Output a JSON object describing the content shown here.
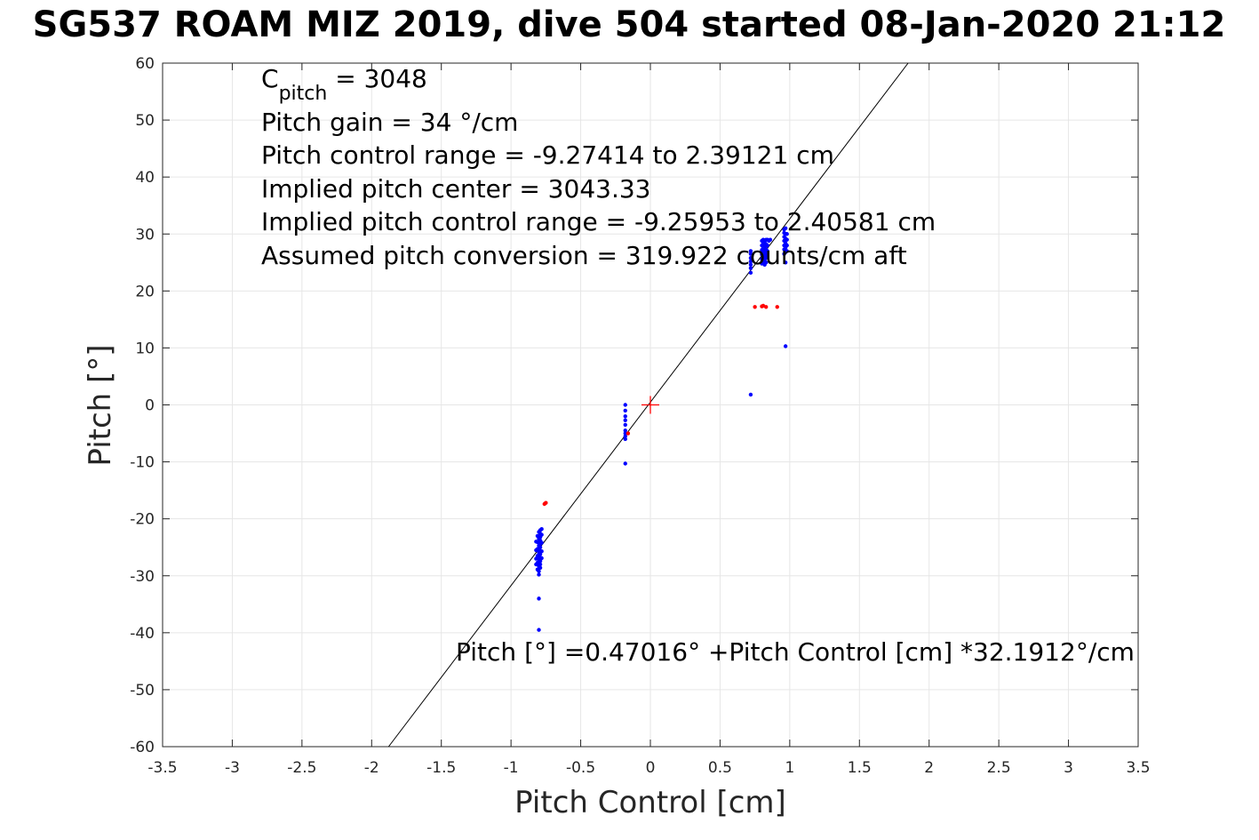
{
  "chart_data": {
    "type": "scatter",
    "title": "SG537 ROAM MIZ 2019, dive 504 started 08-Jan-2020 21:12",
    "xlabel": "Pitch Control [cm]",
    "ylabel": "Pitch [°]",
    "xlim": [
      -3.5,
      3.5
    ],
    "ylim": [
      -60,
      60
    ],
    "xticks": [
      -3.5,
      -3,
      -2.5,
      -2,
      -1.5,
      -1,
      -0.5,
      0,
      0.5,
      1,
      1.5,
      2,
      2.5,
      3,
      3.5
    ],
    "yticks": [
      -60,
      -50,
      -40,
      -30,
      -20,
      -10,
      0,
      10,
      20,
      30,
      40,
      50,
      60
    ],
    "xtick_labels": [
      "-3.5",
      "-3",
      "-2.5",
      "-2",
      "-1.5",
      "-1",
      "-0.5",
      "0",
      "0.5",
      "1",
      "1.5",
      "2",
      "2.5",
      "3",
      "3.5"
    ],
    "ytick_labels": [
      "-60",
      "-50",
      "-40",
      "-30",
      "-20",
      "-10",
      "0",
      "10",
      "20",
      "30",
      "40",
      "50",
      "60"
    ],
    "grid": true,
    "annotations": {
      "c_pitch_main": "C",
      "c_pitch_sub": "pitch",
      "c_pitch_rest": " = 3048",
      "pitch_gain": "Pitch gain = 34 °/cm",
      "control_range": "Pitch control range = -9.27414 to 2.39121 cm",
      "implied_center": "Implied pitch center = 3043.33",
      "implied_range": "Implied pitch control range = -9.25953 to 2.40581 cm",
      "assumed_conversion": "Assumed pitch conversion = 319.922 counts/cm aft",
      "fit_equation": "Pitch [°] =0.47016° +Pitch Control [cm] *32.1912°/cm"
    },
    "fit_line": {
      "intercept": 0.47016,
      "slope": 32.1912,
      "color": "#000000"
    },
    "center_marker": {
      "x": 0,
      "y": 0,
      "color": "#ff0000"
    },
    "series": [
      {
        "color": "#0000ff",
        "points": [
          [
            -0.79,
            -22.0
          ],
          [
            -0.79,
            -22.6
          ],
          [
            -0.79,
            -23.2
          ],
          [
            -0.79,
            -23.8
          ],
          [
            -0.79,
            -24.4
          ],
          [
            -0.79,
            -25.0
          ],
          [
            -0.79,
            -25.6
          ],
          [
            -0.79,
            -26.2
          ],
          [
            -0.79,
            -26.8
          ],
          [
            -0.79,
            -27.4
          ],
          [
            -0.79,
            -28.0
          ],
          [
            -0.79,
            -28.6
          ],
          [
            -0.8,
            -22.3
          ],
          [
            -0.8,
            -23.5
          ],
          [
            -0.8,
            -24.7
          ],
          [
            -0.8,
            -25.9
          ],
          [
            -0.8,
            -27.1
          ],
          [
            -0.8,
            -28.3
          ],
          [
            -0.8,
            -29.2
          ],
          [
            -0.8,
            -29.8
          ],
          [
            -0.81,
            -23.0
          ],
          [
            -0.81,
            -24.1
          ],
          [
            -0.81,
            -25.3
          ],
          [
            -0.81,
            -26.5
          ],
          [
            -0.81,
            -27.7
          ],
          [
            -0.81,
            -28.9
          ],
          [
            -0.82,
            -24.0
          ],
          [
            -0.82,
            -25.5
          ],
          [
            -0.82,
            -27.0
          ],
          [
            -0.82,
            -28.0
          ],
          [
            -0.78,
            -22.8
          ],
          [
            -0.78,
            -24.2
          ],
          [
            -0.78,
            -25.7
          ],
          [
            -0.78,
            -26.9
          ],
          [
            -0.78,
            -21.8
          ],
          [
            -0.8,
            -34.0
          ],
          [
            -0.8,
            -39.5
          ],
          [
            -0.18,
            0.0
          ],
          [
            -0.18,
            -1.0
          ],
          [
            -0.18,
            -2.0
          ],
          [
            -0.18,
            -2.7
          ],
          [
            -0.18,
            -3.5
          ],
          [
            -0.18,
            -4.5
          ],
          [
            -0.18,
            -5.0
          ],
          [
            -0.18,
            -5.5
          ],
          [
            -0.18,
            -6.0
          ],
          [
            -0.18,
            -10.3
          ],
          [
            0.72,
            23.2
          ],
          [
            0.72,
            24.0
          ],
          [
            0.72,
            24.6
          ],
          [
            0.72,
            25.2
          ],
          [
            0.72,
            25.8
          ],
          [
            0.72,
            26.5
          ],
          [
            0.72,
            27.0
          ],
          [
            0.72,
            1.8
          ],
          [
            0.8,
            24.8
          ],
          [
            0.8,
            25.6
          ],
          [
            0.8,
            26.4
          ],
          [
            0.8,
            27.2
          ],
          [
            0.8,
            28.0
          ],
          [
            0.8,
            28.8
          ],
          [
            0.81,
            25.2
          ],
          [
            0.81,
            26.0
          ],
          [
            0.81,
            26.8
          ],
          [
            0.81,
            27.6
          ],
          [
            0.81,
            28.4
          ],
          [
            0.81,
            29.0
          ],
          [
            0.82,
            24.6
          ],
          [
            0.82,
            25.4
          ],
          [
            0.82,
            26.2
          ],
          [
            0.82,
            27.0
          ],
          [
            0.82,
            27.8
          ],
          [
            0.82,
            28.6
          ],
          [
            0.83,
            25.0
          ],
          [
            0.83,
            25.8
          ],
          [
            0.83,
            26.6
          ],
          [
            0.83,
            27.4
          ],
          [
            0.83,
            28.2
          ],
          [
            0.83,
            29.0
          ],
          [
            0.84,
            26.0
          ],
          [
            0.84,
            27.0
          ],
          [
            0.84,
            28.0
          ],
          [
            0.84,
            29.0
          ],
          [
            0.85,
            28.8
          ],
          [
            0.86,
            29.0
          ],
          [
            0.96,
            26.5
          ],
          [
            0.96,
            27.3
          ],
          [
            0.96,
            28.0
          ],
          [
            0.96,
            28.8
          ],
          [
            0.96,
            29.5
          ],
          [
            0.96,
            30.2
          ],
          [
            0.96,
            30.8
          ],
          [
            0.97,
            26.8
          ],
          [
            0.97,
            27.6
          ],
          [
            0.97,
            28.4
          ],
          [
            0.97,
            29.2
          ],
          [
            0.97,
            30.0
          ],
          [
            0.97,
            31.0
          ],
          [
            0.97,
            25.0
          ],
          [
            0.98,
            27.0
          ],
          [
            0.98,
            28.0
          ],
          [
            0.98,
            29.0
          ],
          [
            0.98,
            30.0
          ],
          [
            0.97,
            10.3
          ]
        ]
      },
      {
        "color": "#ff0000",
        "points": [
          [
            -0.75,
            -17.2
          ],
          [
            -0.76,
            -17.4
          ],
          [
            -0.16,
            -5.0
          ],
          [
            0.75,
            17.2
          ],
          [
            0.8,
            17.3
          ],
          [
            0.81,
            17.4
          ],
          [
            0.83,
            17.2
          ],
          [
            0.91,
            17.2
          ]
        ]
      }
    ]
  }
}
